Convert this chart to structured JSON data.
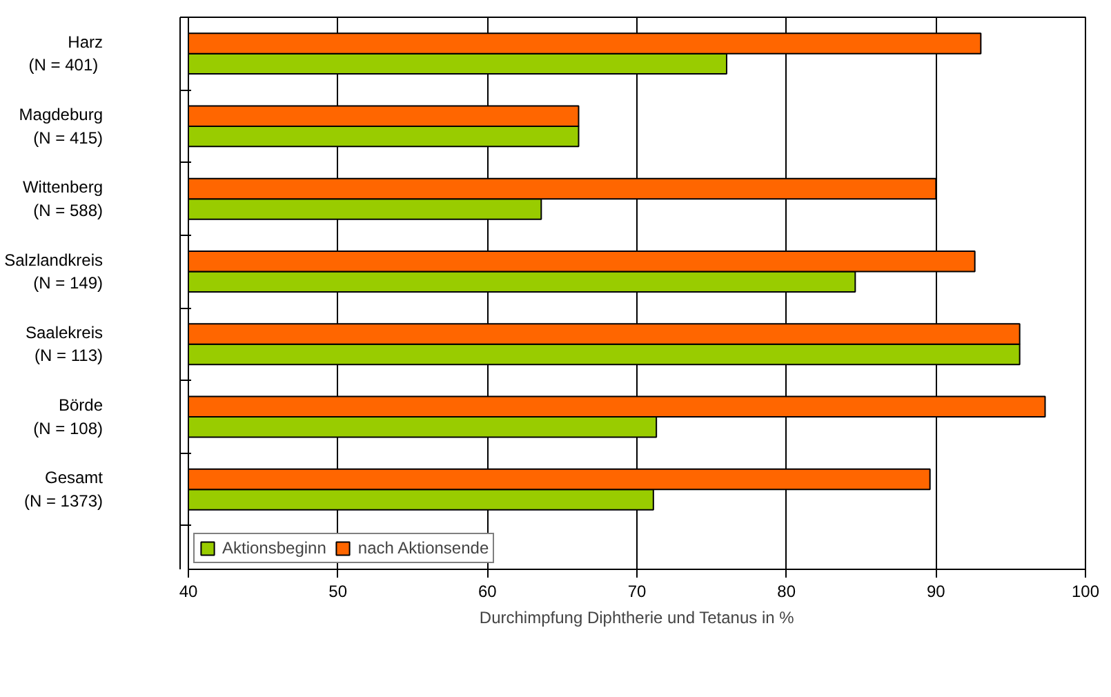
{
  "chart_data": {
    "type": "bar",
    "orientation": "horizontal",
    "xlabel": "Durchimpfung Diphtherie und Tetanus in %",
    "categories": [
      "Harz\n(N =  401)",
      "Magdeburg\n(N = 415)",
      "Wittenberg\n(N = 588)",
      "Salzlandkreis\n(N = 149)",
      "Saalekreis\n(N = 113)",
      "Börde\n(N = 108)",
      "Gesamt\n(N = 1373)"
    ],
    "series": [
      {
        "name": "Aktionsbeginn",
        "color": "#99cc00",
        "values": [
          76.0,
          66.1,
          63.6,
          84.6,
          95.6,
          71.3,
          71.1
        ]
      },
      {
        "name": "nach Aktionsende",
        "color": "#ff6600",
        "values": [
          93.0,
          66.1,
          90.0,
          92.6,
          95.6,
          97.3,
          89.6
        ]
      }
    ],
    "xlim": [
      40,
      100
    ],
    "xticks": [
      40,
      50,
      60,
      70,
      80,
      90,
      100
    ],
    "grid": "x",
    "legend": "bottom left"
  }
}
